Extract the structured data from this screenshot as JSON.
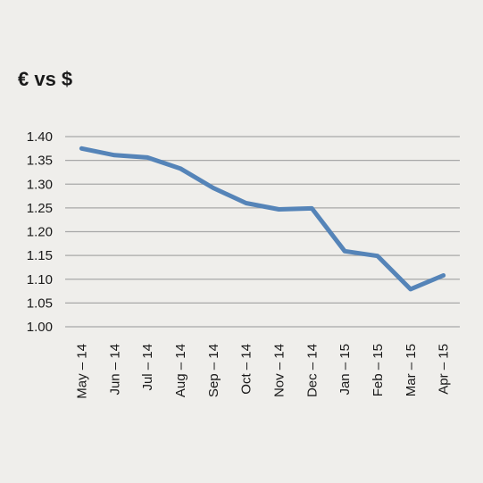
{
  "chart_data": {
    "type": "line",
    "title": "€ vs $",
    "xlabel": "",
    "ylabel": "",
    "categories": [
      "May – 14",
      "Jun – 14",
      "Jul – 14",
      "Aug – 14",
      "Sep – 14",
      "Oct – 14",
      "Nov – 14",
      "Dec – 14",
      "Jan – 15",
      "Feb – 15",
      "Mar – 15",
      "Apr – 15"
    ],
    "series": [
      {
        "values": [
          1.375,
          1.361,
          1.356,
          1.333,
          1.292,
          1.26,
          1.247,
          1.249,
          1.159,
          1.149,
          1.079,
          1.108
        ]
      }
    ],
    "yticks": [
      "1.40",
      "1.35",
      "1.30",
      "1.25",
      "1.20",
      "1.15",
      "1.10",
      "1.05",
      "1.00"
    ],
    "ylim": [
      1.0,
      1.4
    ],
    "grid": true,
    "colors": {
      "line": "#5584b8",
      "grid": "#a8a8a8",
      "background": "#efeeeb"
    }
  }
}
